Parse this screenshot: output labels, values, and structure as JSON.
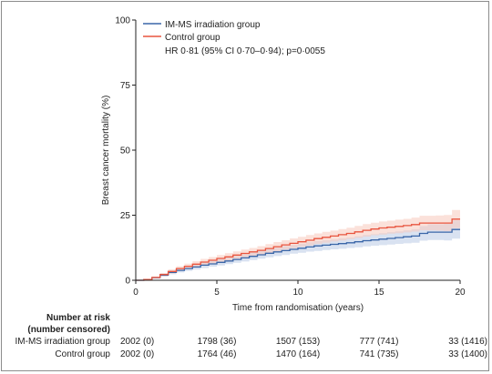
{
  "chart_data": {
    "type": "line",
    "xlabel": "Time from randomisation (years)",
    "ylabel": "Breast cancer mortality (%)",
    "xlim": [
      0,
      20
    ],
    "ylim": [
      0,
      100
    ],
    "x_ticks": [
      "0",
      "5",
      "10",
      "15",
      "20"
    ],
    "y_ticks": [
      "0",
      "25",
      "50",
      "75",
      "100"
    ],
    "legend_position": "top-left",
    "annotation": "HR 0·81 (95% CI 0·70–0·94); p=0·0055",
    "series": [
      {
        "name": "IM-MS irradiation group",
        "color": "#3a66a8",
        "band_color": "#b9cbe6",
        "x": [
          0,
          0.5,
          1,
          1.5,
          2,
          2.5,
          3,
          3.5,
          4,
          4.5,
          5,
          5.5,
          6,
          6.5,
          7,
          7.5,
          8,
          8.5,
          9,
          9.5,
          10,
          10.5,
          11,
          11.5,
          12,
          12.5,
          13,
          13.5,
          14,
          14.5,
          15,
          15.5,
          16,
          16.5,
          17,
          17.5,
          18,
          18.5,
          19,
          19.5,
          20
        ],
        "values": [
          0,
          0.3,
          1.0,
          2.0,
          3.0,
          3.8,
          4.5,
          5.1,
          5.8,
          6.3,
          6.9,
          7.4,
          8.0,
          8.6,
          9.2,
          9.8,
          10.4,
          10.9,
          11.4,
          11.9,
          12.3,
          12.8,
          13.2,
          13.5,
          13.8,
          14.1,
          14.4,
          14.8,
          15.2,
          15.5,
          15.8,
          16.1,
          16.4,
          16.7,
          17.0,
          18.0,
          18.5,
          18.5,
          18.5,
          19.5,
          19.5
        ],
        "lower": [
          0,
          0.1,
          0.6,
          1.4,
          2.3,
          3.0,
          3.6,
          4.1,
          4.7,
          5.2,
          5.7,
          6.2,
          6.7,
          7.2,
          7.8,
          8.3,
          8.8,
          9.3,
          9.7,
          10.2,
          10.6,
          11.0,
          11.3,
          11.6,
          11.9,
          12.1,
          12.4,
          12.7,
          13.0,
          13.3,
          13.5,
          13.7,
          14.0,
          14.2,
          14.4,
          15.2,
          15.5,
          15.5,
          15.3,
          16.0,
          16.0
        ],
        "upper": [
          0,
          0.5,
          1.4,
          2.6,
          3.7,
          4.6,
          5.4,
          6.1,
          6.9,
          7.4,
          8.1,
          8.6,
          9.3,
          10.0,
          10.6,
          11.3,
          12.0,
          12.5,
          13.1,
          13.6,
          14.0,
          14.6,
          15.1,
          15.4,
          15.7,
          16.1,
          16.4,
          16.9,
          17.4,
          17.7,
          18.1,
          18.5,
          18.8,
          19.2,
          19.6,
          20.8,
          21.5,
          21.5,
          21.7,
          23.0,
          23.0
        ]
      },
      {
        "name": "Control group",
        "color": "#e8553f",
        "band_color": "#f7c9bc",
        "x": [
          0,
          0.5,
          1,
          1.5,
          2,
          2.5,
          3,
          3.5,
          4,
          4.5,
          5,
          5.5,
          6,
          6.5,
          7,
          7.5,
          8,
          8.5,
          9,
          9.5,
          10,
          10.5,
          11,
          11.5,
          12,
          12.5,
          13,
          13.5,
          14,
          14.5,
          15,
          15.5,
          16,
          16.5,
          17,
          17.5,
          18,
          18.5,
          19,
          19.5,
          20
        ],
        "values": [
          0,
          0.3,
          1.1,
          2.2,
          3.4,
          4.5,
          5.4,
          6.2,
          7.0,
          7.7,
          8.4,
          9.0,
          9.7,
          10.3,
          10.9,
          11.5,
          12.2,
          12.9,
          13.6,
          14.2,
          14.8,
          15.4,
          16.0,
          16.5,
          17.0,
          17.5,
          18.0,
          18.6,
          19.2,
          19.7,
          20.1,
          20.4,
          20.7,
          21.0,
          21.4,
          22.0,
          22.0,
          22.0,
          22.0,
          23.5,
          23.5
        ],
        "lower": [
          0,
          0.1,
          0.7,
          1.6,
          2.6,
          3.6,
          4.4,
          5.1,
          5.8,
          6.5,
          7.1,
          7.6,
          8.3,
          8.8,
          9.4,
          9.9,
          10.5,
          11.1,
          11.8,
          12.3,
          12.9,
          13.4,
          14.0,
          14.4,
          14.9,
          15.3,
          15.8,
          16.3,
          16.8,
          17.3,
          17.6,
          17.9,
          18.1,
          18.4,
          18.7,
          19.2,
          19.2,
          19.1,
          18.9,
          20.0,
          20.0
        ],
        "upper": [
          0,
          0.5,
          1.5,
          2.8,
          4.2,
          5.4,
          6.4,
          7.3,
          8.2,
          8.9,
          9.7,
          10.4,
          11.1,
          11.8,
          12.4,
          13.1,
          13.9,
          14.7,
          15.4,
          16.1,
          16.7,
          17.4,
          18.0,
          18.6,
          19.1,
          19.7,
          20.2,
          20.9,
          21.6,
          22.1,
          22.6,
          22.9,
          23.3,
          23.6,
          24.1,
          24.8,
          24.8,
          24.9,
          25.1,
          27.0,
          27.0
        ]
      }
    ],
    "risk_table": {
      "title_line1": "Number at risk",
      "title_line2": "(number censored)",
      "rows": [
        {
          "label": "IM-MS irradiation group",
          "cells": [
            "2002 (0)",
            "1798 (36)",
            "1507 (153)",
            "777 (741)",
            "33 (1416)"
          ]
        },
        {
          "label": "Control group",
          "cells": [
            "2002 (0)",
            "1764 (46)",
            "1470 (164)",
            "741 (735)",
            "33 (1400)"
          ]
        }
      ]
    }
  }
}
